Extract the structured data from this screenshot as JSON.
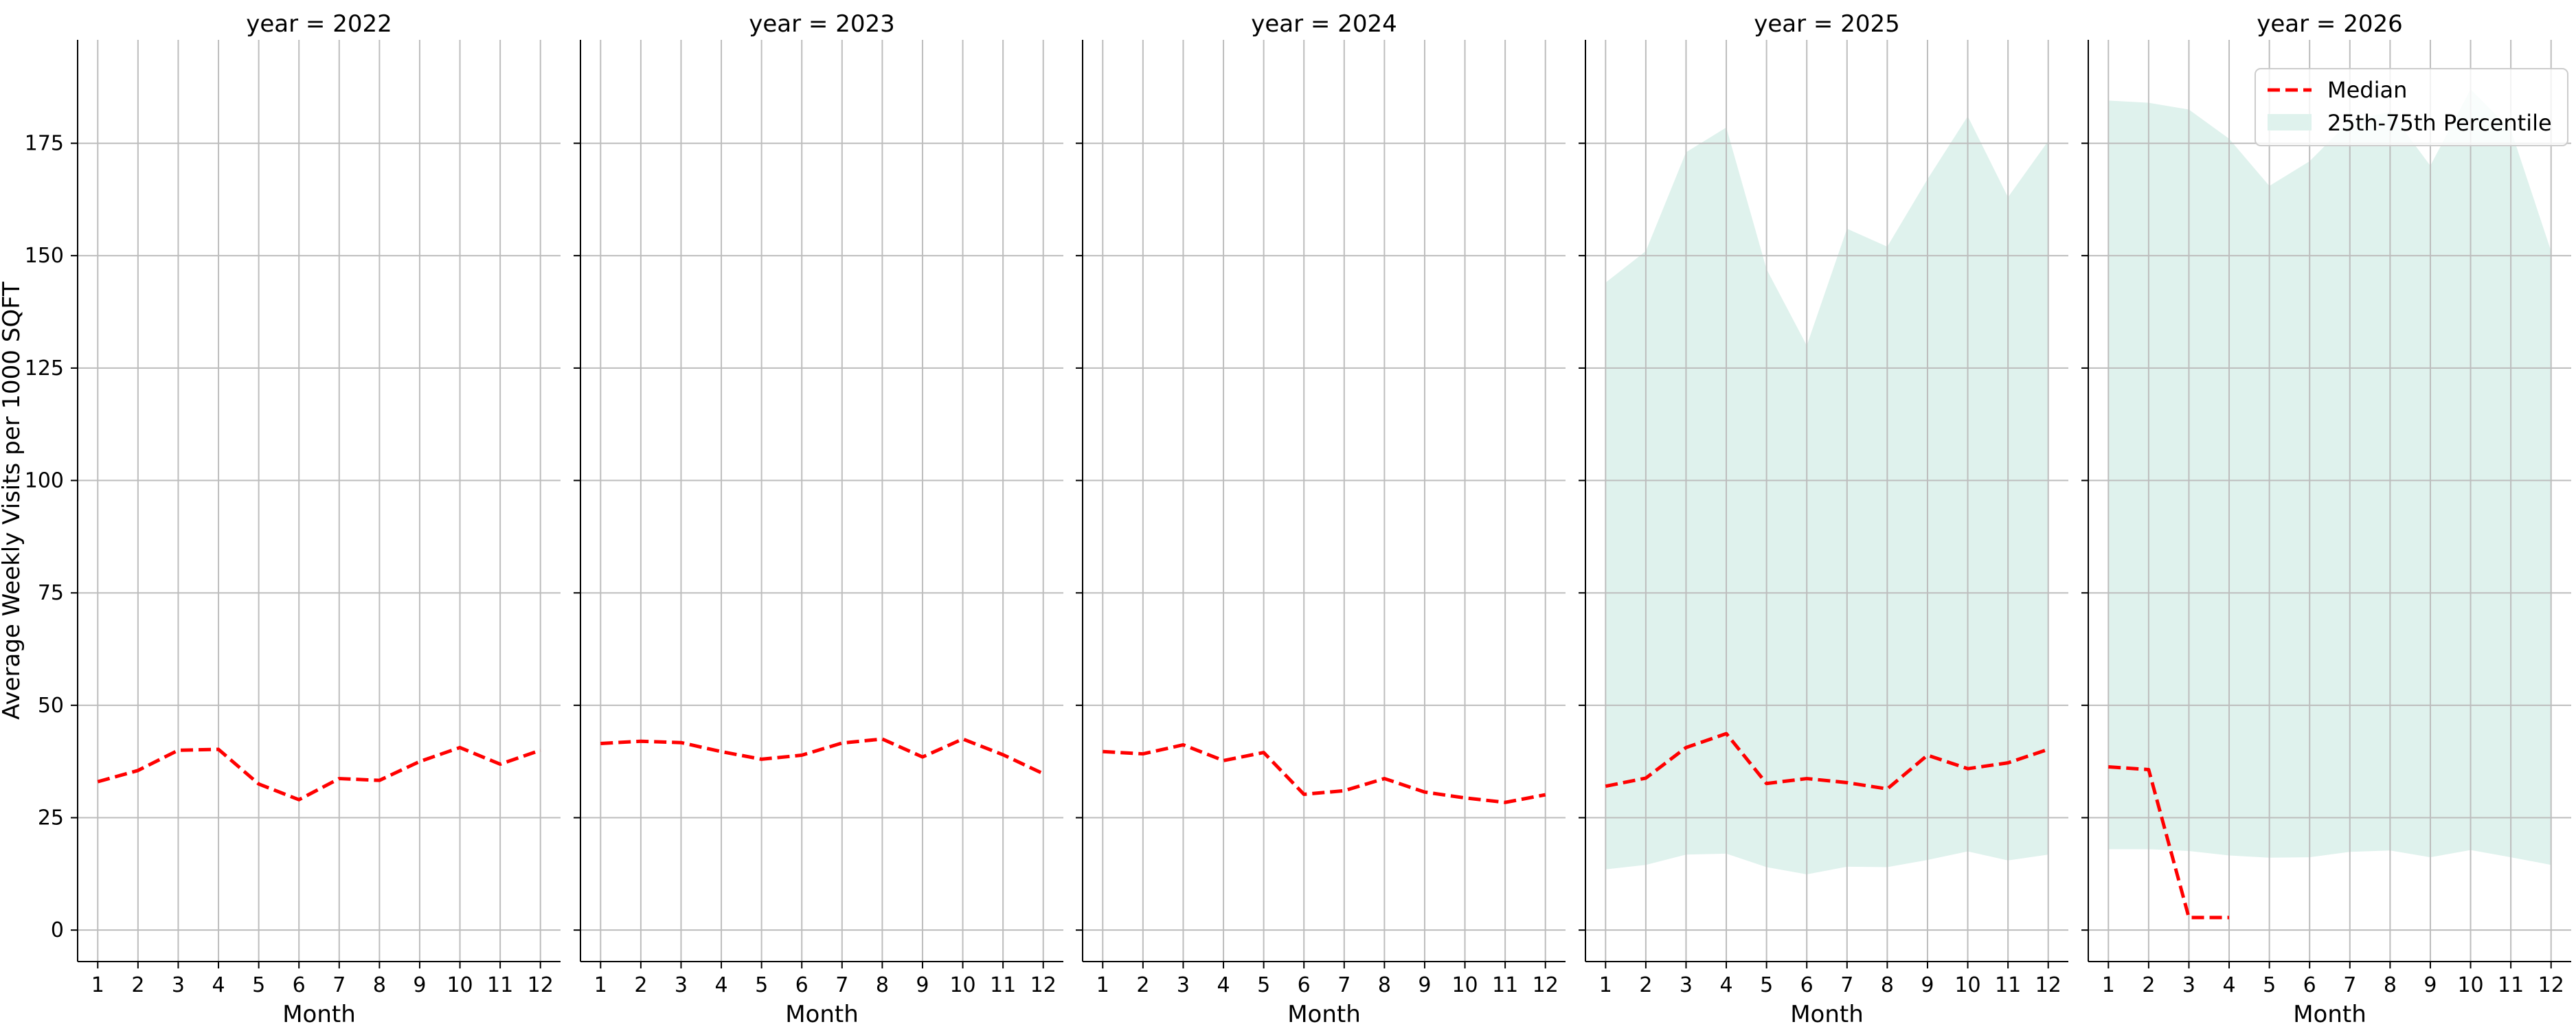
{
  "chart_data": {
    "type": "line",
    "ylabel": "Average Weekly Visits per 1000 SQFT",
    "ylim": [
      -7,
      198
    ],
    "yticks": [
      0,
      25,
      50,
      75,
      100,
      125,
      150,
      175
    ],
    "xlim": [
      0.5,
      12.5
    ],
    "xticks": [
      "1",
      "2",
      "3",
      "4",
      "5",
      "6",
      "7",
      "8",
      "9",
      "10",
      "11",
      "12"
    ],
    "grid": true,
    "legend": {
      "position": "top-right",
      "entries": [
        "Median",
        "25th-75th Percentile"
      ]
    },
    "colors": {
      "median": "#ff0000",
      "band": "#dff2ed",
      "grid": "#bdbdbd",
      "axis": "#000000"
    },
    "panels": [
      {
        "title": "year = 2022",
        "xlabel": "Month",
        "median": {
          "x": [
            1,
            2,
            3,
            4,
            5,
            6,
            7,
            8,
            9,
            10,
            11,
            12
          ],
          "y": [
            33.0,
            35.5,
            40.0,
            40.2,
            32.5,
            29.0,
            33.7,
            33.3,
            37.5,
            40.6,
            36.9,
            40.0
          ]
        },
        "band": null
      },
      {
        "title": "year = 2023",
        "xlabel": "Month",
        "median": {
          "x": [
            1,
            2,
            3,
            4,
            5,
            6,
            7,
            8,
            9,
            10,
            11,
            12
          ],
          "y": [
            41.5,
            42.0,
            41.7,
            39.7,
            38.0,
            38.9,
            41.6,
            42.5,
            38.5,
            42.5,
            39.0,
            34.8
          ]
        },
        "band": null
      },
      {
        "title": "year = 2024",
        "xlabel": "Month",
        "median": {
          "x": [
            1,
            2,
            3,
            4,
            5,
            6,
            7,
            8,
            9,
            10,
            11,
            12
          ],
          "y": [
            39.7,
            39.2,
            41.2,
            37.7,
            39.5,
            30.2,
            31.0,
            33.7,
            30.7,
            29.4,
            28.4,
            30.1
          ]
        },
        "band": null
      },
      {
        "title": "year = 2025",
        "xlabel": "Month",
        "median": {
          "x": [
            1,
            2,
            3,
            4,
            5,
            6,
            7,
            8,
            9,
            10,
            11,
            12
          ],
          "y": [
            32.0,
            33.8,
            40.6,
            43.7,
            32.6,
            33.7,
            32.8,
            31.4,
            38.9,
            35.9,
            37.2,
            40.2
          ]
        },
        "band": {
          "x": [
            1,
            2,
            3,
            4,
            5,
            6,
            7,
            8,
            9,
            10,
            11,
            12
          ],
          "low": [
            13.5,
            14.5,
            16.8,
            17.0,
            14.0,
            12.4,
            14.1,
            14.0,
            15.6,
            17.5,
            15.5,
            16.8
          ],
          "high": [
            144,
            151,
            173,
            178.5,
            147,
            130,
            156,
            152,
            167,
            181,
            163,
            175.5
          ]
        }
      },
      {
        "title": "year = 2026",
        "xlabel": "Month",
        "median": {
          "x": [
            1,
            2,
            3,
            4
          ],
          "y": [
            36.3,
            35.7,
            2.8,
            2.8
          ]
        },
        "band": {
          "x": [
            1,
            2,
            3,
            4,
            5,
            6,
            7,
            8,
            9,
            10,
            11,
            12
          ],
          "low": [
            18.0,
            18.0,
            17.6,
            16.6,
            16.1,
            16.2,
            17.4,
            17.7,
            16.2,
            17.8,
            16.2,
            14.5
          ],
          "high": [
            184.5,
            184,
            182.5,
            176,
            165.5,
            171,
            180,
            182,
            170,
            187,
            178,
            151
          ]
        }
      }
    ]
  }
}
